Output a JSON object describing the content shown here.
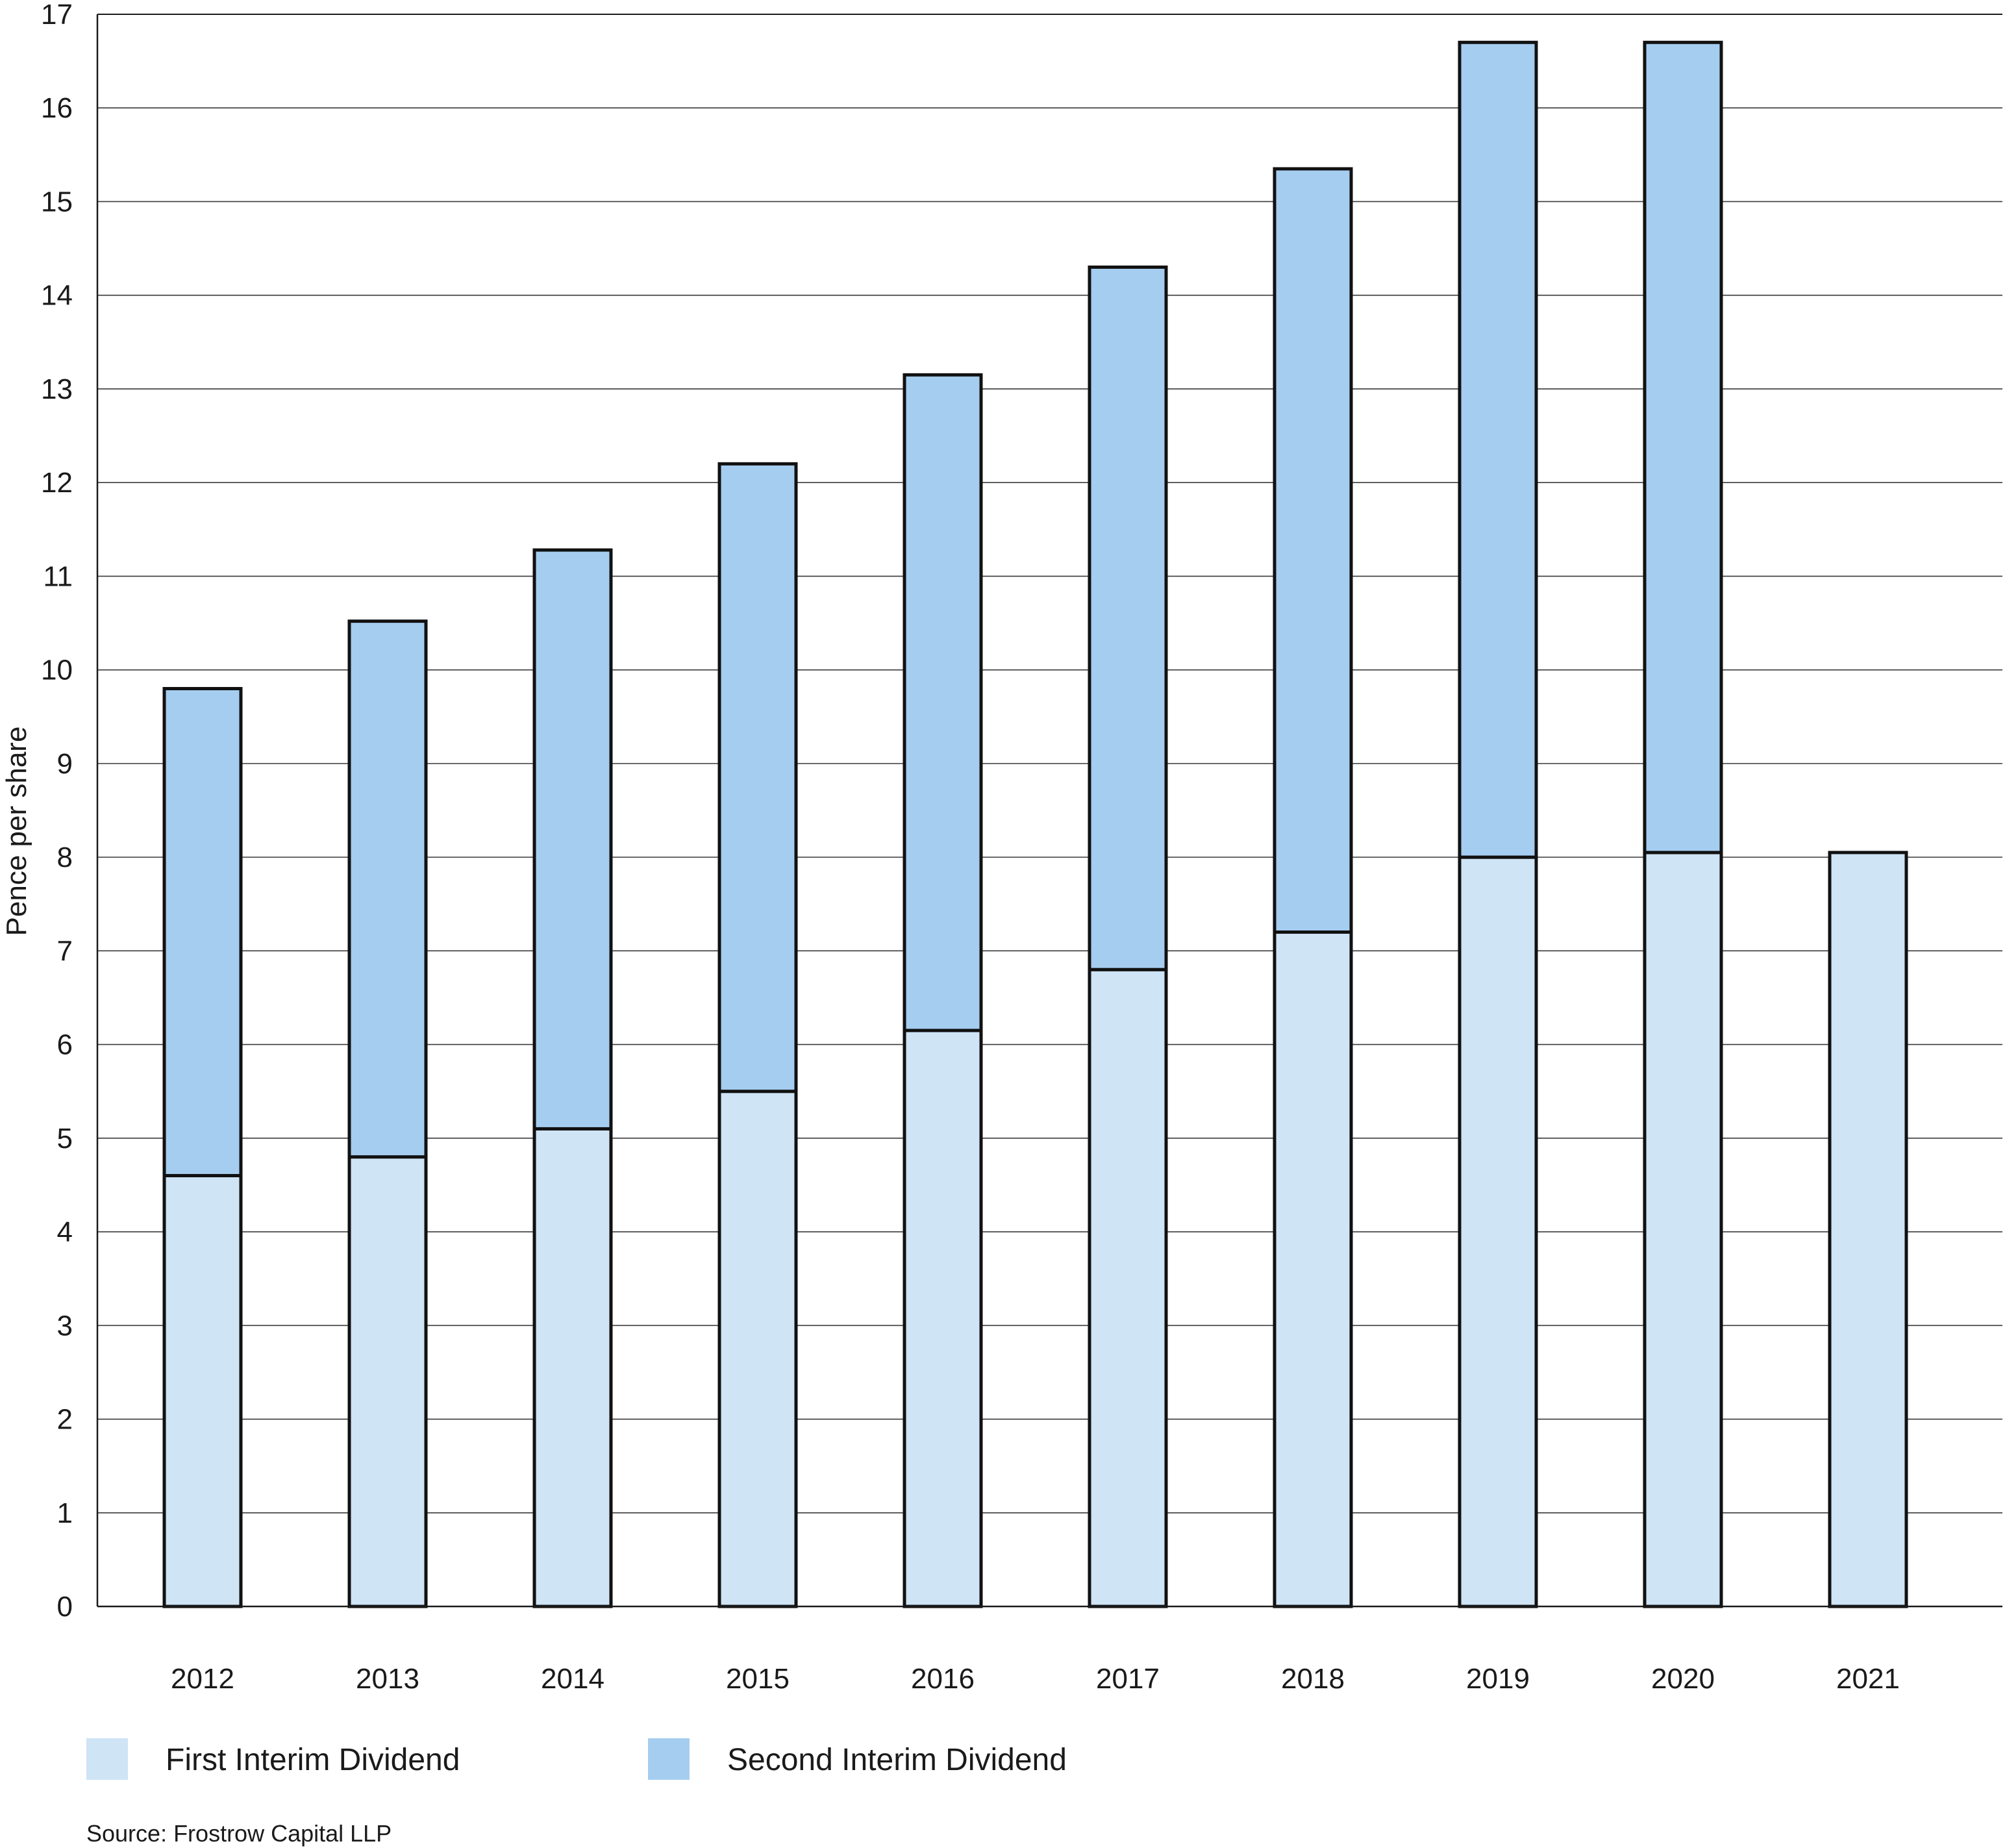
{
  "chart_data": {
    "type": "bar",
    "stacked": true,
    "title": "",
    "xlabel": "",
    "ylabel": "Pence per share",
    "ylim": [
      0,
      17
    ],
    "yticks": [
      0,
      1,
      2,
      3,
      4,
      5,
      6,
      7,
      8,
      9,
      10,
      11,
      12,
      13,
      14,
      15,
      16,
      17
    ],
    "grid": true,
    "legend_position": "bottom-left",
    "categories": [
      "2012",
      "2013",
      "2014",
      "2015",
      "2016",
      "2017",
      "2018",
      "2019",
      "2020",
      "2021"
    ],
    "series": [
      {
        "name": "First Interim Dividend",
        "color": "#cfe4f5",
        "values": [
          4.6,
          4.8,
          5.1,
          5.5,
          6.15,
          6.8,
          7.2,
          8.0,
          8.05,
          8.05
        ]
      },
      {
        "name": "Second Interim Dividend",
        "color": "#a5cdf0",
        "values": [
          5.2,
          5.72,
          6.18,
          6.7,
          7.0,
          7.5,
          8.15,
          8.7,
          8.65,
          0
        ]
      }
    ],
    "source": "Source: Frostrow Capital LLP"
  }
}
